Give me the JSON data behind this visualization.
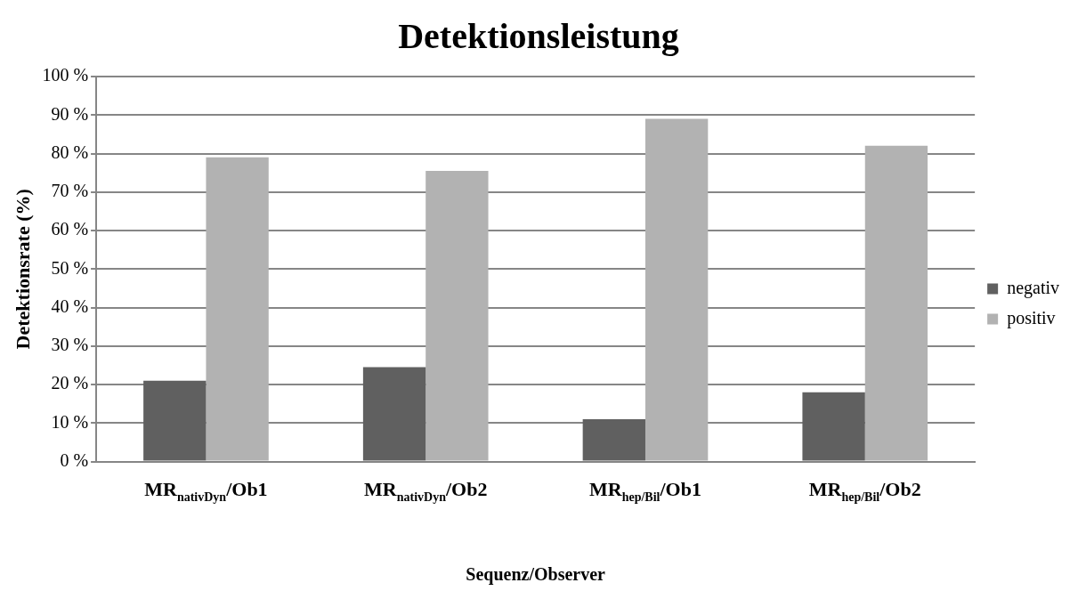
{
  "chart_data": {
    "type": "bar",
    "title": "Detektionsleistung",
    "xlabel": "Sequenz/Observer",
    "ylabel": "Detektionsrate (%)",
    "categories": [
      "MR$_{nativDyn}$/Ob1",
      "MR$_{nativDyn}$/Ob2",
      "MR$_{hep/Bil}$/Ob1",
      "MR$_{hep/Bil}$/Ob2"
    ],
    "series": [
      {
        "name": "negativ",
        "color": "#606060",
        "values": [
          21,
          24.5,
          11,
          18
        ]
      },
      {
        "name": "positiv",
        "color": "#b2b2b2",
        "values": [
          79,
          75.5,
          89,
          82
        ]
      }
    ],
    "ylim": [
      0,
      100
    ],
    "yticks": [
      {
        "value": 0,
        "label": "0 %"
      },
      {
        "value": 10,
        "label": "10 %"
      },
      {
        "value": 20,
        "label": "20 %"
      },
      {
        "value": 30,
        "label": "30 %"
      },
      {
        "value": 40,
        "label": "40 %"
      },
      {
        "value": 50,
        "label": "50 %"
      },
      {
        "value": 60,
        "label": "60 %"
      },
      {
        "value": 70,
        "label": "70 %"
      },
      {
        "value": 80,
        "label": "80 %"
      },
      {
        "value": 90,
        "label": "90 %"
      },
      {
        "value": 100,
        "label": "100 %"
      }
    ],
    "grid": "y",
    "legend": "right"
  }
}
